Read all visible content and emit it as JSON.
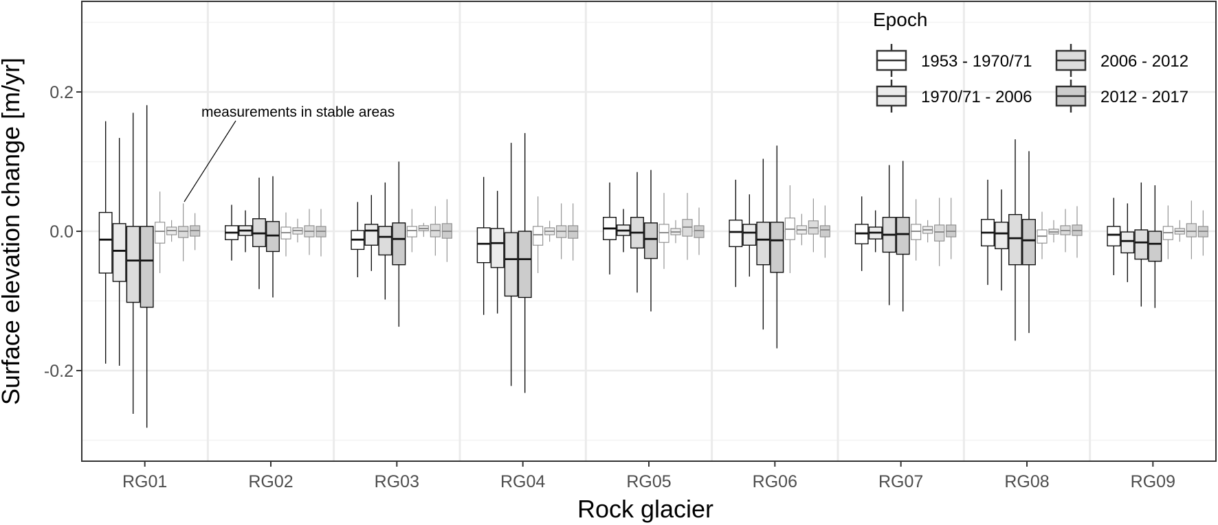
{
  "chart_data": {
    "type": "boxplot",
    "title": "",
    "xlabel": "Rock glacier",
    "ylabel": "Surface elevation change [m/yr]",
    "ylim": [
      -0.33,
      0.33
    ],
    "y_ticks": [
      -0.2,
      0.0,
      0.2
    ],
    "y_tick_labels": [
      "-0.2",
      "0.0",
      "0.2"
    ],
    "grid": true,
    "legend": {
      "title": "Epoch",
      "placement": "top-right",
      "entries": [
        "1953 - 1970/71",
        "1970/71 - 2006",
        "2006 - 2012",
        "2012 - 2017"
      ]
    },
    "series_colors": [
      "#ffffff",
      "#ebebeb",
      "#dcdcdc",
      "#cccccc"
    ],
    "categories": [
      "RG01",
      "RG02",
      "RG03",
      "RG04",
      "RG05",
      "RG06",
      "RG07",
      "RG08",
      "RG09"
    ],
    "annotation": "measurements in stable areas",
    "groups": [
      {
        "category": "RG01",
        "glacier": [
          [
            -0.19,
            -0.06,
            -0.012,
            0.027,
            0.158
          ],
          [
            -0.193,
            -0.072,
            -0.028,
            0.011,
            0.134
          ],
          [
            -0.262,
            -0.102,
            -0.042,
            0.007,
            0.17
          ],
          [
            -0.282,
            -0.109,
            -0.042,
            0.007,
            0.181
          ]
        ],
        "stable": [
          [
            -0.06,
            -0.017,
            0.0,
            0.013,
            0.057
          ],
          [
            -0.015,
            -0.005,
            0.001,
            0.006,
            0.016
          ],
          [
            -0.043,
            -0.009,
            0.0,
            0.007,
            0.04
          ],
          [
            -0.027,
            -0.007,
            0.001,
            0.008,
            0.026
          ]
        ]
      },
      {
        "category": "RG02",
        "glacier": [
          [
            -0.042,
            -0.012,
            -0.002,
            0.008,
            0.038
          ],
          [
            -0.03,
            -0.006,
            0.001,
            0.008,
            0.03
          ],
          [
            -0.083,
            -0.022,
            -0.003,
            0.018,
            0.077
          ],
          [
            -0.095,
            -0.029,
            -0.006,
            0.014,
            0.079
          ]
        ],
        "stable": [
          [
            -0.036,
            -0.011,
            -0.002,
            0.006,
            0.027
          ],
          [
            -0.016,
            -0.004,
            0.001,
            0.005,
            0.018
          ],
          [
            -0.034,
            -0.008,
            0.0,
            0.008,
            0.032
          ],
          [
            -0.036,
            -0.008,
            0.0,
            0.007,
            0.032
          ]
        ]
      },
      {
        "category": "RG03",
        "glacier": [
          [
            -0.066,
            -0.026,
            -0.012,
            0.001,
            0.042
          ],
          [
            -0.057,
            -0.02,
            0.001,
            0.01,
            0.052
          ],
          [
            -0.098,
            -0.034,
            -0.008,
            0.007,
            0.07
          ],
          [
            -0.137,
            -0.048,
            -0.011,
            0.012,
            0.1
          ]
        ],
        "stable": [
          [
            -0.03,
            -0.008,
            0.001,
            0.007,
            0.032
          ],
          [
            -0.008,
            0.001,
            0.004,
            0.008,
            0.012
          ],
          [
            -0.035,
            -0.008,
            0.001,
            0.01,
            0.036
          ],
          [
            -0.044,
            -0.01,
            0.0,
            0.011,
            0.046
          ]
        ]
      },
      {
        "category": "RG04",
        "glacier": [
          [
            -0.12,
            -0.045,
            -0.018,
            0.005,
            0.078
          ],
          [
            -0.118,
            -0.052,
            -0.017,
            0.004,
            0.058
          ],
          [
            -0.222,
            -0.093,
            -0.04,
            -0.002,
            0.127
          ],
          [
            -0.232,
            -0.095,
            -0.04,
            0.0,
            0.141
          ]
        ],
        "stable": [
          [
            -0.06,
            -0.02,
            -0.005,
            0.007,
            0.05
          ],
          [
            -0.015,
            -0.005,
            0.0,
            0.005,
            0.015
          ],
          [
            -0.04,
            -0.009,
            0.0,
            0.008,
            0.04
          ],
          [
            -0.042,
            -0.01,
            0.0,
            0.008,
            0.04
          ]
        ]
      },
      {
        "category": "RG05",
        "glacier": [
          [
            -0.062,
            -0.012,
            0.004,
            0.02,
            0.07
          ],
          [
            -0.03,
            -0.006,
            0.001,
            0.009,
            0.032
          ],
          [
            -0.088,
            -0.024,
            -0.002,
            0.02,
            0.085
          ],
          [
            -0.115,
            -0.039,
            -0.011,
            0.012,
            0.088
          ]
        ],
        "stable": [
          [
            -0.054,
            -0.016,
            -0.002,
            0.01,
            0.055
          ],
          [
            -0.017,
            -0.005,
            -0.001,
            0.004,
            0.016
          ],
          [
            -0.041,
            -0.007,
            0.006,
            0.017,
            0.055
          ],
          [
            -0.034,
            -0.009,
            0.001,
            0.008,
            0.034
          ]
        ]
      },
      {
        "category": "RG06",
        "glacier": [
          [
            -0.08,
            -0.022,
            -0.001,
            0.016,
            0.074
          ],
          [
            -0.065,
            -0.02,
            -0.002,
            0.01,
            0.053
          ],
          [
            -0.141,
            -0.048,
            -0.012,
            0.013,
            0.104
          ],
          [
            -0.168,
            -0.059,
            -0.013,
            0.013,
            0.123
          ]
        ],
        "stable": [
          [
            -0.06,
            -0.012,
            0.003,
            0.019,
            0.066
          ],
          [
            -0.02,
            -0.004,
            0.002,
            0.008,
            0.025
          ],
          [
            -0.03,
            -0.004,
            0.005,
            0.015,
            0.047
          ],
          [
            -0.038,
            -0.008,
            0.002,
            0.008,
            0.037
          ]
        ]
      },
      {
        "category": "RG07",
        "glacier": [
          [
            -0.057,
            -0.018,
            -0.003,
            0.01,
            0.05
          ],
          [
            -0.03,
            -0.011,
            -0.002,
            0.006,
            0.03
          ],
          [
            -0.106,
            -0.03,
            -0.005,
            0.02,
            0.095
          ],
          [
            -0.115,
            -0.033,
            -0.004,
            0.02,
            0.101
          ]
        ],
        "stable": [
          [
            -0.042,
            -0.012,
            0.0,
            0.01,
            0.046
          ],
          [
            -0.016,
            -0.003,
            0.002,
            0.007,
            0.016
          ],
          [
            -0.05,
            -0.014,
            -0.001,
            0.009,
            0.048
          ],
          [
            -0.04,
            -0.008,
            0.0,
            0.009,
            0.048
          ]
        ]
      },
      {
        "category": "RG08",
        "glacier": [
          [
            -0.077,
            -0.021,
            -0.002,
            0.017,
            0.074
          ],
          [
            -0.085,
            -0.025,
            -0.003,
            0.013,
            0.06
          ],
          [
            -0.157,
            -0.048,
            -0.01,
            0.024,
            0.132
          ],
          [
            -0.146,
            -0.048,
            -0.013,
            0.017,
            0.115
          ]
        ],
        "stable": [
          [
            -0.04,
            -0.017,
            -0.007,
            0.002,
            0.028
          ],
          [
            -0.016,
            -0.004,
            -0.001,
            0.003,
            0.016
          ],
          [
            -0.03,
            -0.005,
            0.001,
            0.008,
            0.032
          ],
          [
            -0.038,
            -0.006,
            0.001,
            0.009,
            0.036
          ]
        ]
      },
      {
        "category": "RG09",
        "glacier": [
          [
            -0.063,
            -0.021,
            -0.005,
            0.007,
            0.048
          ],
          [
            -0.073,
            -0.031,
            -0.014,
            -0.001,
            0.04
          ],
          [
            -0.108,
            -0.04,
            -0.016,
            0.002,
            0.07
          ],
          [
            -0.11,
            -0.043,
            -0.018,
            0.0,
            0.066
          ]
        ],
        "stable": [
          [
            -0.04,
            -0.012,
            -0.002,
            0.007,
            0.037
          ],
          [
            -0.015,
            -0.004,
            0.0,
            0.004,
            0.016
          ],
          [
            -0.04,
            -0.008,
            0.0,
            0.011,
            0.044
          ],
          [
            -0.035,
            -0.008,
            0.0,
            0.007,
            0.03
          ]
        ]
      }
    ]
  }
}
